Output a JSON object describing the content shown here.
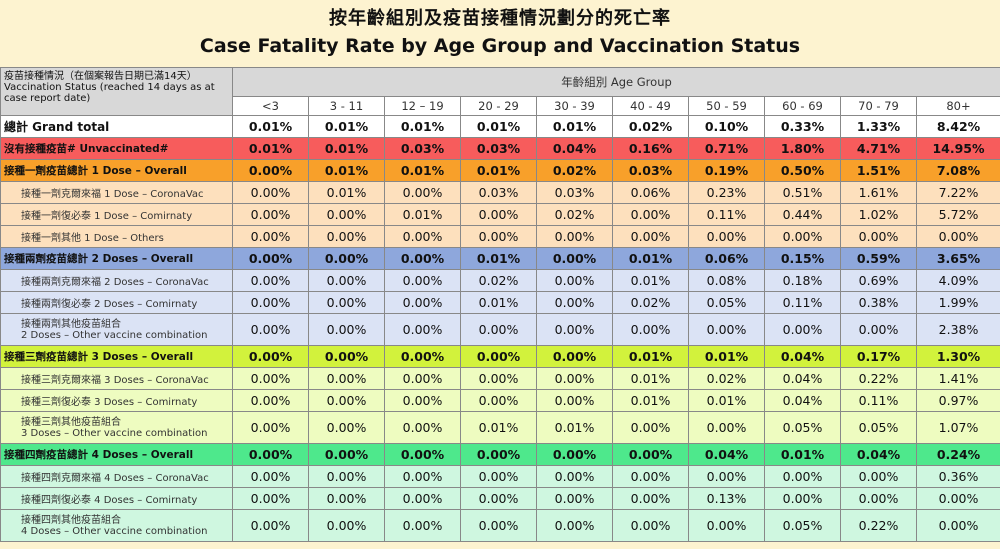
{
  "title": {
    "zh": "按年齡組別及疫苗接種情況劃分的死亡率",
    "en": "Case Fatality Rate by Age Group and Vaccination Status"
  },
  "header": {
    "status_zh": "疫苗接種情況（在個案報告日期已滿14天）",
    "status_en": "Vaccination Status (reached 14 days as at case report date)",
    "age_group": "年齡組別 Age Group",
    "ages": [
      "<3",
      "3 - 11",
      "12 – 19",
      "20 - 29",
      "30 - 39",
      "40 - 49",
      "50 - 59",
      "60 - 69",
      "70 - 79",
      "80+"
    ]
  },
  "rows": [
    {
      "label": "總計 Grand total",
      "values": [
        "0.01%",
        "0.01%",
        "0.01%",
        "0.01%",
        "0.01%",
        "0.02%",
        "0.10%",
        "0.33%",
        "1.33%",
        "8.42%"
      ]
    },
    {
      "label": "沒有接種疫苗# Unvaccinated#",
      "values": [
        "0.01%",
        "0.01%",
        "0.03%",
        "0.03%",
        "0.04%",
        "0.16%",
        "0.71%",
        "1.80%",
        "4.71%",
        "14.95%"
      ]
    },
    {
      "label": "接種一劑疫苗總計 1 Dose – Overall",
      "values": [
        "0.00%",
        "0.01%",
        "0.01%",
        "0.01%",
        "0.02%",
        "0.03%",
        "0.19%",
        "0.50%",
        "1.51%",
        "7.08%"
      ]
    },
    {
      "label": "接種一劑克爾來福 1 Dose – CoronaVac",
      "values": [
        "0.00%",
        "0.01%",
        "0.00%",
        "0.03%",
        "0.03%",
        "0.06%",
        "0.23%",
        "0.51%",
        "1.61%",
        "7.22%"
      ]
    },
    {
      "label": "接種一劑復必泰 1 Dose – Comirnaty",
      "values": [
        "0.00%",
        "0.00%",
        "0.01%",
        "0.00%",
        "0.02%",
        "0.00%",
        "0.11%",
        "0.44%",
        "1.02%",
        "5.72%"
      ]
    },
    {
      "label": "接種一劑其他 1 Dose – Others",
      "values": [
        "0.00%",
        "0.00%",
        "0.00%",
        "0.00%",
        "0.00%",
        "0.00%",
        "0.00%",
        "0.00%",
        "0.00%",
        "0.00%"
      ]
    },
    {
      "label": "接種兩劑疫苗總計 2 Doses – Overall",
      "values": [
        "0.00%",
        "0.00%",
        "0.00%",
        "0.01%",
        "0.00%",
        "0.01%",
        "0.06%",
        "0.15%",
        "0.59%",
        "3.65%"
      ]
    },
    {
      "label": "接種兩劑克爾來福 2 Doses – CoronaVac",
      "values": [
        "0.00%",
        "0.00%",
        "0.00%",
        "0.02%",
        "0.00%",
        "0.01%",
        "0.08%",
        "0.18%",
        "0.69%",
        "4.09%"
      ]
    },
    {
      "label": "接種兩劑復必泰 2 Doses – Comirnaty",
      "values": [
        "0.00%",
        "0.00%",
        "0.00%",
        "0.01%",
        "0.00%",
        "0.02%",
        "0.05%",
        "0.11%",
        "0.38%",
        "1.99%"
      ]
    },
    {
      "label": "接種兩劑其他疫苗組合",
      "label2": "2 Doses – Other vaccine combination",
      "values": [
        "0.00%",
        "0.00%",
        "0.00%",
        "0.00%",
        "0.00%",
        "0.00%",
        "0.00%",
        "0.00%",
        "0.00%",
        "2.38%"
      ]
    },
    {
      "label": "接種三劑疫苗總計 3 Doses – Overall",
      "values": [
        "0.00%",
        "0.00%",
        "0.00%",
        "0.00%",
        "0.00%",
        "0.01%",
        "0.01%",
        "0.04%",
        "0.17%",
        "1.30%"
      ]
    },
    {
      "label": "接種三劑克爾來福 3 Doses – CoronaVac",
      "values": [
        "0.00%",
        "0.00%",
        "0.00%",
        "0.00%",
        "0.00%",
        "0.01%",
        "0.02%",
        "0.04%",
        "0.22%",
        "1.41%"
      ]
    },
    {
      "label": "接種三劑復必泰 3 Doses – Comirnaty",
      "values": [
        "0.00%",
        "0.00%",
        "0.00%",
        "0.00%",
        "0.00%",
        "0.01%",
        "0.01%",
        "0.04%",
        "0.11%",
        "0.97%"
      ]
    },
    {
      "label": "接種三劑其他疫苗組合",
      "label2": "3 Doses – Other vaccine combination",
      "values": [
        "0.00%",
        "0.00%",
        "0.00%",
        "0.01%",
        "0.01%",
        "0.00%",
        "0.00%",
        "0.05%",
        "0.05%",
        "1.07%"
      ]
    },
    {
      "label": "接種四劑疫苗總計 4 Doses – Overall",
      "values": [
        "0.00%",
        "0.00%",
        "0.00%",
        "0.00%",
        "0.00%",
        "0.00%",
        "0.04%",
        "0.01%",
        "0.04%",
        "0.24%"
      ]
    },
    {
      "label": "接種四劑克爾來福 4 Doses – CoronaVac",
      "values": [
        "0.00%",
        "0.00%",
        "0.00%",
        "0.00%",
        "0.00%",
        "0.00%",
        "0.00%",
        "0.00%",
        "0.00%",
        "0.36%"
      ]
    },
    {
      "label": "接種四劑復必泰 4 Doses – Comirnaty",
      "values": [
        "0.00%",
        "0.00%",
        "0.00%",
        "0.00%",
        "0.00%",
        "0.00%",
        "0.13%",
        "0.00%",
        "0.00%",
        "0.00%"
      ]
    },
    {
      "label": "接種四劑其他疫苗組合",
      "label2": "4 Doses – Other vaccine combination",
      "values": [
        "0.00%",
        "0.00%",
        "0.00%",
        "0.00%",
        "0.00%",
        "0.00%",
        "0.00%",
        "0.05%",
        "0.22%",
        "0.00%"
      ]
    }
  ]
}
